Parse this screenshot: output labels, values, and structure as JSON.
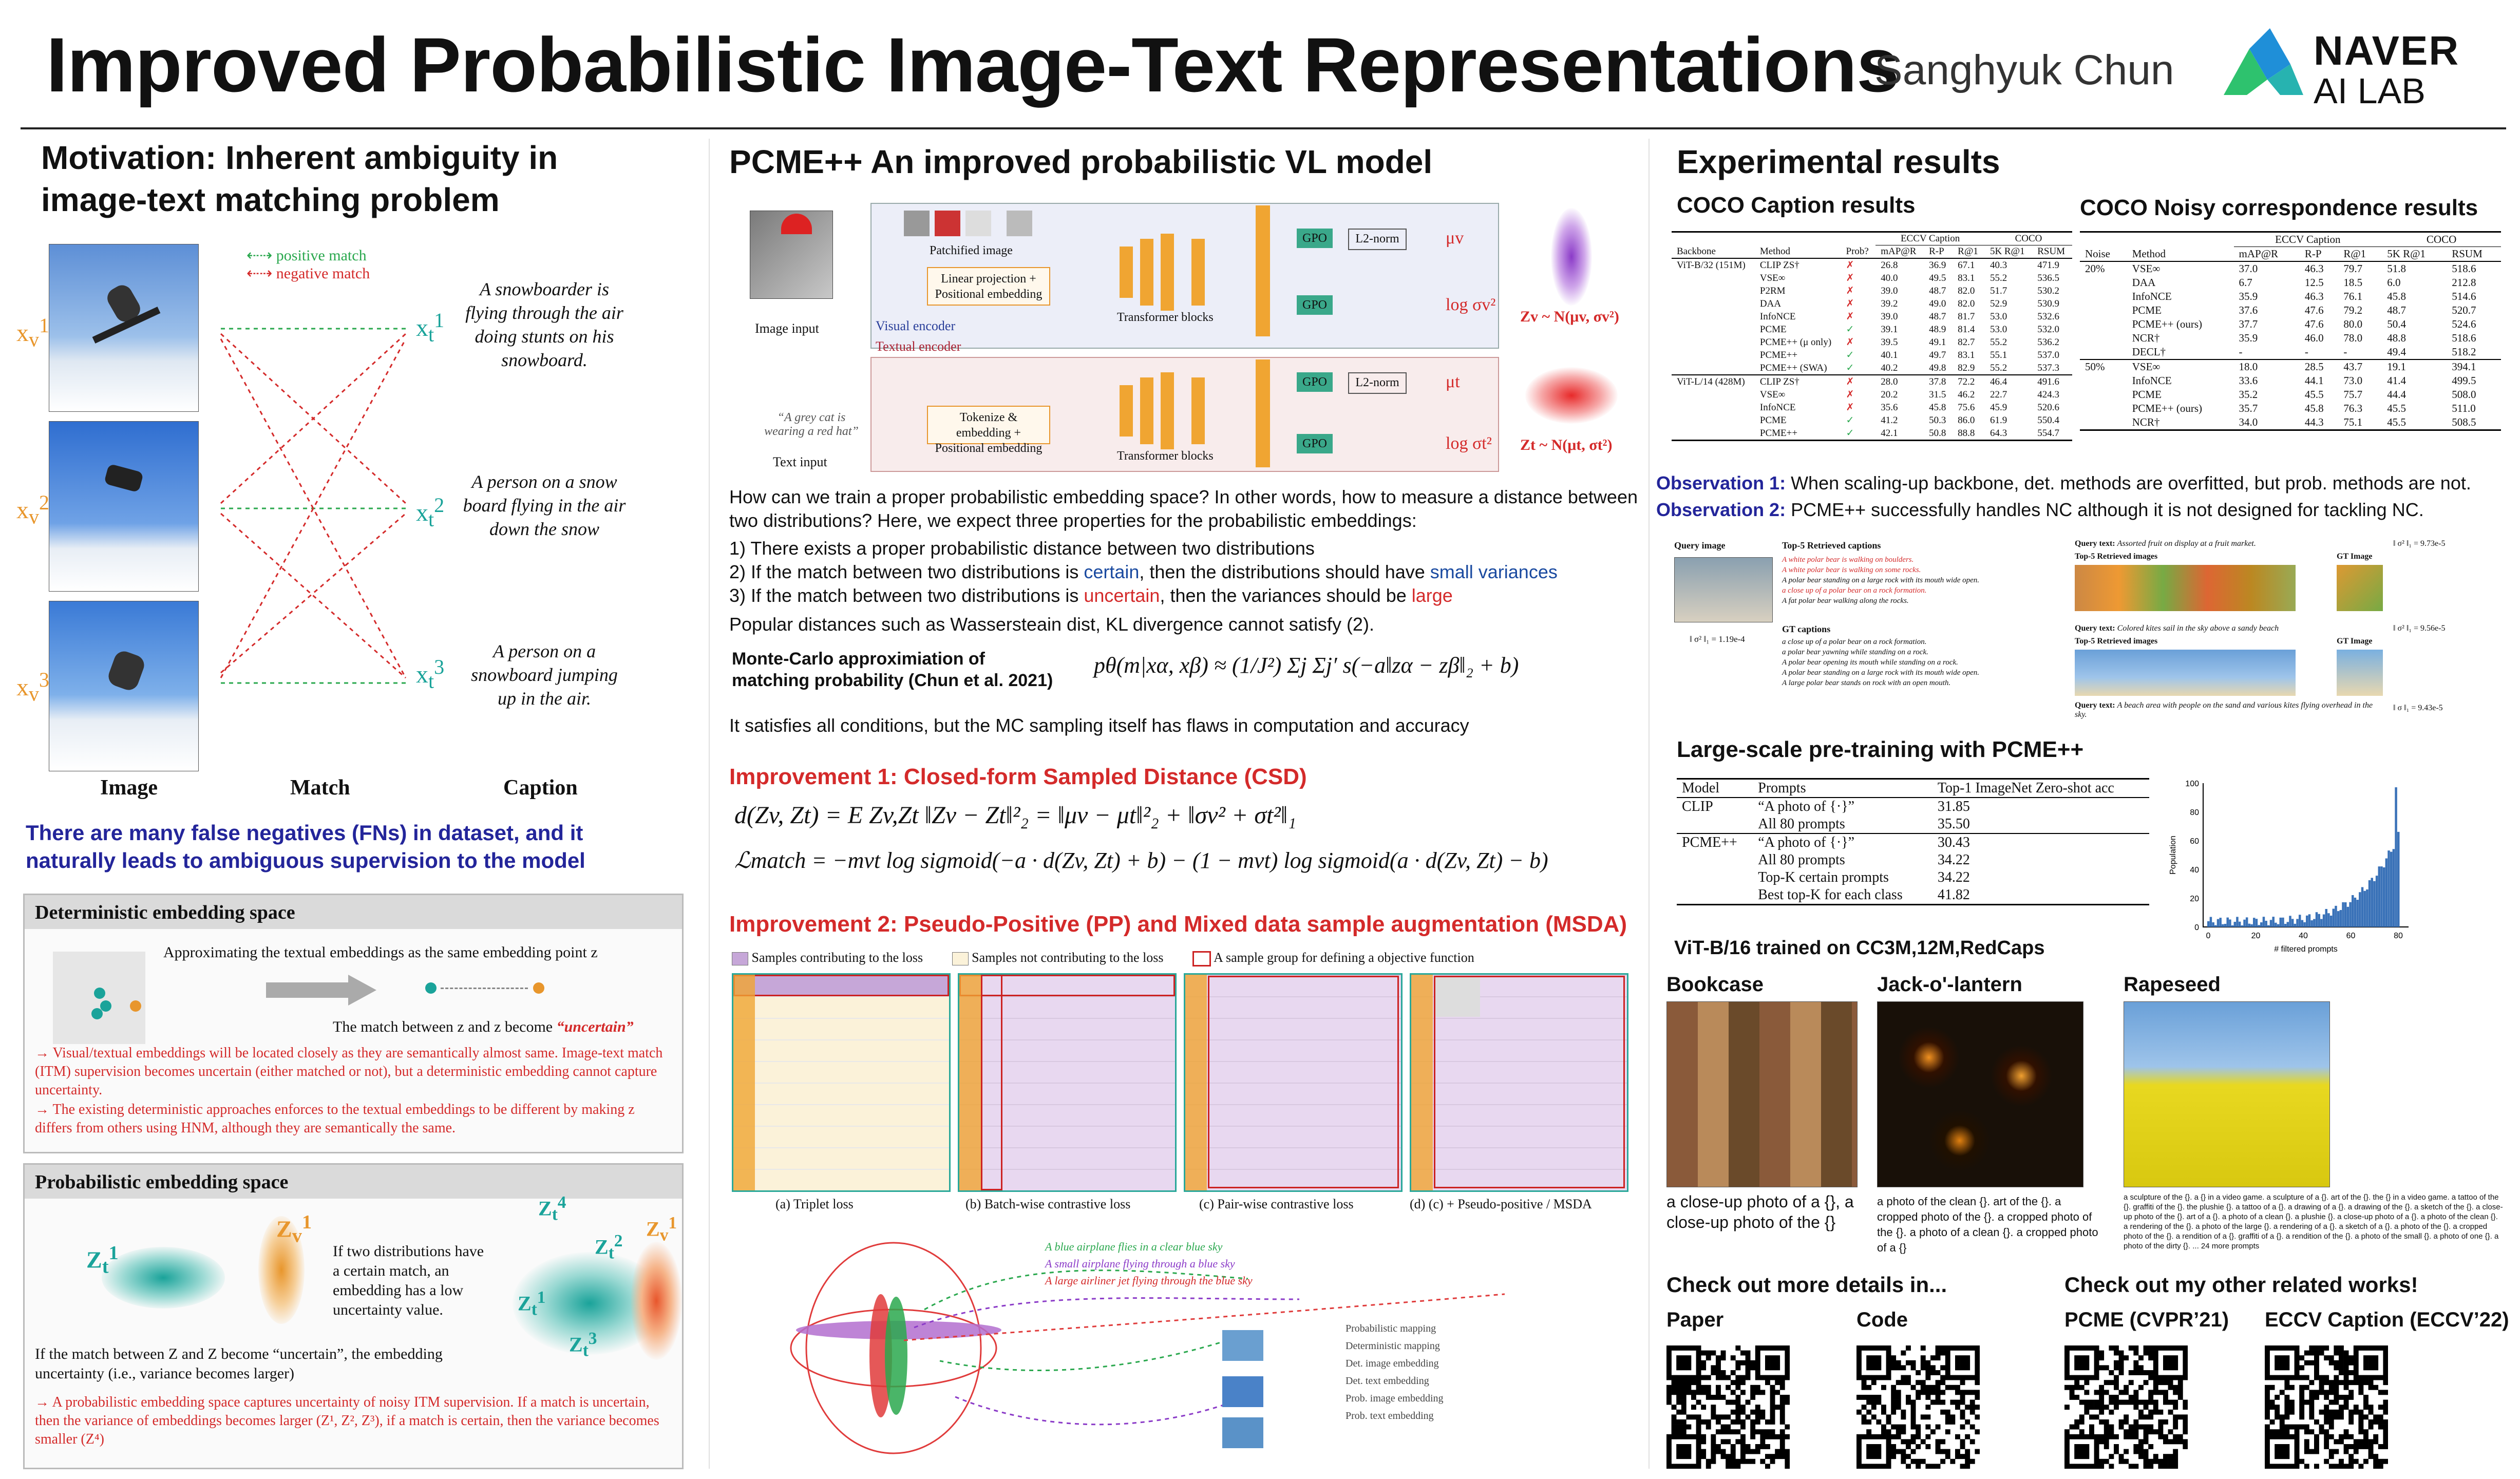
{
  "header": {
    "title": "Improved Probabilistic Image-Text Representations",
    "author": "Sanghyuk Chun",
    "logo_line1": "NAVER",
    "logo_line2": "AI LAB"
  },
  "motivation": {
    "title_line1": "Motivation: Inherent ambiguity in",
    "title_line2": "image-text matching problem",
    "legend_positive": "positive match",
    "legend_negative": "negative match",
    "captions": [
      "A snowboarder is flying through the air doing stunts on his snowboard.",
      "A person on a snow board flying in the air down the snow",
      "A person on a snowboard jumping up in the air."
    ],
    "col_image": "Image",
    "col_match": "Match",
    "col_caption": "Caption",
    "fn_line1": "There are many false negatives (FNs) in dataset, and it",
    "fn_line2": "naturally leads to ambiguous supervision to the model",
    "det_title": "Deterministic embedding space",
    "det_approx": "Approximating the textual embeddings as the same embedding point z",
    "det_match": "The match between z and z become",
    "det_uncertain": "“uncertain”",
    "det_bullet1": "→ Visual/textual embeddings will be located closely as they are semantically almost same. Image-text match (ITM) supervision becomes uncertain (either matched or not), but a deterministic embedding cannot capture uncertainty.",
    "det_bullet2": "→ The existing deterministic approaches enforces to the textual embeddings to be different by making z differs from others using HNM, although they are semantically the same.",
    "prob_title": "Probabilistic embedding space",
    "prob_if": "If two distributions have a certain match, an embedding has a low uncertainty value.",
    "prob_match": "If the match between Z and Z become “uncertain”, the embedding uncertainty (i.e., variance becomes larger)",
    "prob_bullet": "→ A probabilistic embedding space captures uncertainty of noisy ITM supervision. If a match is uncertain, then the variance of embeddings becomes larger (Z¹, Z², Z³), if a match is certain, then the variance becomes smaller (Z⁴)"
  },
  "pcme": {
    "title": "PCME++ An improved probabilistic VL model",
    "image_input": "Image input",
    "text_input": "Text input",
    "text_example": "“A grey cat is wearing a red hat”",
    "patchified": "Patchified image",
    "linear_proj": "Linear projection + Positional embedding",
    "tokenize": "Tokenize & embedding + Positional embedding",
    "visual_encoder": "Visual encoder",
    "textual_encoder": "Textual encoder",
    "transformer": "Transformer blocks",
    "gpo": "GPO",
    "l2norm": "L2-norm",
    "mu_v": "μv",
    "log_sv": "log σv²",
    "mu_t": "μt",
    "log_st": "log σt²",
    "zv": "Zv ~ N(μv, σv²)",
    "zt": "Zt ~ N(μt, σt²)",
    "question": "How can we train a proper probabilistic embedding space? In other words, how to measure a distance between two distributions? Here, we expect three properties for the probabilistic embeddings:",
    "prop1": "1) There exists a proper probabilistic distance between two distributions",
    "prop2_a": "2) If the match between two distributions is ",
    "prop2_b": "certain",
    "prop2_c": ", then the distributions should have ",
    "prop2_d": "small variances",
    "prop3_a": "3) If the match between two distributions is ",
    "prop3_b": "uncertain",
    "prop3_c": ", then the variances should be ",
    "prop3_d": "large",
    "popular": "Popular distances such as Wassersteain dist, KL divergence cannot satisfy (2).",
    "mc_label_1": "Monte-Carlo approximiation of",
    "mc_label_2": "matching probability (Chun et al. 2021)",
    "mc_formula": "pθ(m|xα, xβ) ≈ (1/J²) Σj Σj′ s(−a‖zα − zβ‖₂ + b)",
    "satisfies": "It satisfies all conditions, but the MC sampling itself has flaws in computation and accuracy",
    "imp1": "Improvement 1: Closed-form Sampled Distance (CSD)",
    "csd_formula": "d(Zv, Zt) = E Zv,Zt ‖Zv − Zt‖²₂ = ‖μv − μt‖²₂ + ‖σv² + σt²‖₁",
    "loss_formula": "ℒmatch = −mvt log sigmoid(−a · d(Zv, Zt) + b) − (1 − mvt) log sigmoid(a · d(Zv, Zt) − b)",
    "imp2": "Improvement 2: Pseudo-Positive (PP) and Mixed data sample augmentation (MSDA)",
    "leg_contrib": "Samples contributing to the loss",
    "leg_noncontrib": "Samples not contributing to the loss",
    "leg_group": "A sample group for defining a objective function",
    "loss_captions": [
      "(a) Triplet loss",
      "(b) Batch-wise contrastive loss",
      "(c) Pair-wise contrastive loss",
      "(d) (c) + Pseudo-positive / MSDA"
    ],
    "vis_captions": [
      "A blue airplane flies in a clear blue sky",
      "A small airplane flying through a blue sky",
      "A large airliner jet flying through the blue sky"
    ],
    "vis_legend": [
      "Probabilistic mapping",
      "Deterministic mapping",
      "Det. image embedding",
      "Det. text embedding",
      "Prob. image embedding",
      "Prob. text embedding"
    ]
  },
  "results": {
    "title": "Experimental results",
    "coco_caption_title": "COCO Caption results",
    "coco_noisy_title": "COCO Noisy correspondence results",
    "obs1_label": "Observation 1:",
    "obs1_text": " When scaling-up backbone, det. methods are overfitted, but prob. methods are not.",
    "obs2_label": "Observation 2:",
    "obs2_text": " PCME++ successfully handles NC although it is not designed for tackling NC.",
    "caption_table": {
      "headers": [
        "Backbone",
        "Method",
        "Prob?",
        "mAP@R",
        "R-P",
        "R@1",
        "5K R@1",
        "RSUM"
      ],
      "group_headers": [
        "ECCV Caption",
        "COCO"
      ],
      "rows": [
        [
          "ViT-B/32 (151M)",
          "CLIP ZS†",
          "✗",
          "26.8",
          "36.9",
          "67.1",
          "40.3",
          "471.9"
        ],
        [
          "",
          "VSE∞",
          "✗",
          "40.0",
          "49.5",
          "83.1",
          "55.2",
          "536.5"
        ],
        [
          "",
          "P2RM",
          "✗",
          "39.0",
          "48.7",
          "82.0",
          "51.7",
          "530.2"
        ],
        [
          "",
          "DAA",
          "✗",
          "39.2",
          "49.0",
          "82.0",
          "52.9",
          "530.9"
        ],
        [
          "",
          "InfoNCE",
          "✗",
          "39.0",
          "48.7",
          "81.7",
          "53.0",
          "532.6"
        ],
        [
          "",
          "PCME",
          "✓",
          "39.1",
          "48.9",
          "81.4",
          "53.0",
          "532.0"
        ],
        [
          "",
          "PCME++ (μ only)",
          "✗",
          "39.5",
          "49.1",
          "82.7",
          "55.2",
          "536.2"
        ],
        [
          "",
          "PCME++",
          "✓",
          "40.1",
          "49.7",
          "83.1",
          "55.1",
          "537.0"
        ],
        [
          "",
          "PCME++ (SWA)",
          "✓",
          "40.2",
          "49.8",
          "82.9",
          "55.2",
          "537.3"
        ],
        [
          "ViT-L/14 (428M)",
          "CLIP ZS†",
          "✗",
          "28.0",
          "37.8",
          "72.2",
          "46.4",
          "491.6"
        ],
        [
          "",
          "VSE∞",
          "✗",
          "20.2",
          "31.5",
          "46.2",
          "22.7",
          "424.3"
        ],
        [
          "",
          "InfoNCE",
          "✗",
          "35.6",
          "45.8",
          "75.6",
          "45.9",
          "520.6"
        ],
        [
          "",
          "PCME",
          "✓",
          "41.2",
          "50.3",
          "86.0",
          "61.9",
          "550.4"
        ],
        [
          "",
          "PCME++",
          "✓",
          "42.1",
          "50.8",
          "88.8",
          "64.3",
          "554.7"
        ]
      ]
    },
    "noisy_table": {
      "headers": [
        "Noise",
        "Method",
        "mAP@R",
        "R-P",
        "R@1",
        "5K R@1",
        "RSUM"
      ],
      "group_headers": [
        "ECCV Caption",
        "COCO"
      ],
      "rows": [
        [
          "20%",
          "VSE∞",
          "37.0",
          "46.3",
          "79.7",
          "51.8",
          "518.6"
        ],
        [
          "",
          "DAA",
          "6.7",
          "12.5",
          "18.5",
          "6.0",
          "212.8"
        ],
        [
          "",
          "InfoNCE",
          "35.9",
          "46.3",
          "76.1",
          "45.8",
          "514.6"
        ],
        [
          "",
          "PCME",
          "37.6",
          "47.6",
          "79.2",
          "48.7",
          "520.7"
        ],
        [
          "",
          "PCME++ (ours)",
          "37.7",
          "47.6",
          "80.0",
          "50.4",
          "524.6"
        ],
        [
          "",
          "NCR†",
          "35.9",
          "46.0",
          "78.0",
          "48.8",
          "518.6"
        ],
        [
          "",
          "DECL†",
          "-",
          "-",
          "-",
          "49.4",
          "518.2"
        ],
        [
          "50%",
          "VSE∞",
          "18.0",
          "28.5",
          "43.7",
          "19.1",
          "394.1"
        ],
        [
          "",
          "InfoNCE",
          "33.6",
          "44.1",
          "73.0",
          "41.4",
          "499.5"
        ],
        [
          "",
          "PCME",
          "35.2",
          "45.5",
          "75.7",
          "44.4",
          "508.0"
        ],
        [
          "",
          "PCME++ (ours)",
          "35.7",
          "45.8",
          "76.3",
          "45.5",
          "511.0"
        ],
        [
          "",
          "NCR†",
          "34.0",
          "44.3",
          "75.1",
          "45.5",
          "508.5"
        ]
      ]
    },
    "retrieval": {
      "query_image": "Query image",
      "top5_captions": "Top-5 Retrieved captions",
      "captions": [
        "A white polar bear is walking on boulders.",
        "A white polar bear is walking on some rocks.",
        "A polar bear standing on a large rock with its mouth wide open.",
        "a close up of a polar bear on a rock formation.",
        "A fat polar bear walking along the rocks."
      ],
      "gt_captions": "GT captions",
      "gt_list": [
        "a close up of a polar bear on a rock formation.",
        "a polar bear yawning while standing on a rock.",
        "A polar bear opening its mouth while standing on a rock.",
        "A polar bear standing on a large rock with its mouth wide open.",
        "A large polar bear stands on rock with an open mouth."
      ],
      "sigma_img": "‖ σ² ‖₁ = 1.19e-4",
      "query_text_1": "Query text:",
      "query_text_1_val": "Assorted fruit on display at a fruit market.",
      "top5_images": "Top-5 Retrieved images",
      "gt_image": "GT Image",
      "sigma_1": "‖ σ² ‖₁ = 9.73e-5",
      "query_text_2_val": "Colored kites sail in the sky above a sandy beach",
      "sigma_2": "‖ σ² ‖₁ = 9.56e-5",
      "query_text_3_val": "A beach area with people on the sand and various kites flying overhead in the sky.",
      "sigma_3": "‖ σ ‖₁ = 9.43e-5"
    },
    "pretrain_title": "Large-scale pre-training with PCME++",
    "pretrain_table": {
      "headers": [
        "Model",
        "Prompts",
        "Top-1 ImageNet Zero-shot acc"
      ],
      "rows": [
        [
          "CLIP",
          "“A photo of {·}”",
          "31.85"
        ],
        [
          "",
          "All 80 prompts",
          "35.50"
        ],
        [
          "PCME++",
          "“A photo of {·}”",
          "30.43"
        ],
        [
          "",
          "All 80 prompts",
          "34.22"
        ],
        [
          "",
          "Top-K certain prompts",
          "34.22"
        ],
        [
          "",
          "Best top-K for each class",
          "41.82"
        ]
      ]
    },
    "pretrain_note": "ViT-B/16 trained on CC3M,12M,RedCaps",
    "hist": {
      "ylabel": "Population",
      "xlabel": "# filtered prompts",
      "yticks": [
        "0",
        "20",
        "40",
        "60",
        "80",
        "100"
      ],
      "xticks": [
        "0",
        "20",
        "40",
        "60",
        "80"
      ]
    },
    "classes": [
      {
        "name": "Bookcase",
        "prompt": "a close-up photo of a {}, a close-up photo of the {}"
      },
      {
        "name": "Jack-o'-lantern",
        "prompt": "a photo of the clean {}. art of the {}. a cropped photo of the {}. a cropped photo of the {}. a photo of a clean {}. a cropped photo of a {}"
      },
      {
        "name": "Rapeseed",
        "prompt": "a sculpture of the {}. a {} in a video game. a sculpture of a {}. art of the {}. the {} in a video game. a tattoo of the {}. graffiti of the {}. the plushie {}. a tattoo of a {}. a drawing of a {}. a drawing of the {}. a sketch of the {}. a close-up photo of the {}. art of a {}. a photo of a clean {}. a plushie {}. a close-up photo of a {}. a photo of the clean {}. a rendering of the {}. a photo of the large {}. a rendering of a {}. a sketch of a {}. a photo of the {}. a cropped photo of the {}. a rendition of a {}. graffiti of a {}. a rendition of the {}. a photo of the small {}. a photo of one {}. a photo of the dirty {}. ... 24 more prompts"
      }
    ],
    "more_details": "Check out more details in...",
    "related_works": "Check out my other related works!",
    "qr_labels": [
      "Paper",
      "Code",
      "PCME (CVPR’21)",
      "ECCV Caption (ECCV’22)"
    ]
  },
  "histogram_data": {
    "type": "bar",
    "x_range": [
      0,
      80
    ],
    "y_range": [
      0,
      100
    ]
  },
  "colors": {
    "accent_red": "#d42a2a",
    "accent_blue": "#1a4aa0",
    "navy": "#23259a",
    "orange": "#e8962c",
    "teal": "#1aa39a",
    "green": "#2aa84e",
    "hist_bar": "#3a72b8"
  }
}
